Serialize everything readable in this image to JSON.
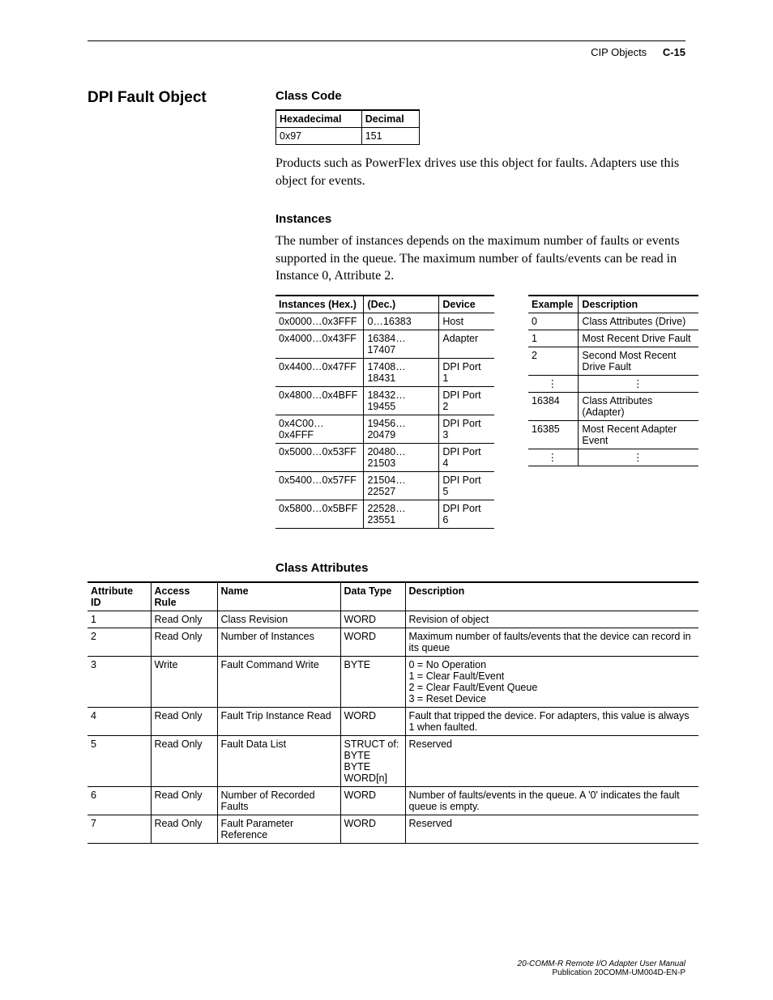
{
  "header": {
    "section": "CIP Objects",
    "page": "C-15"
  },
  "title": "DPI Fault Object",
  "classCode": {
    "heading": "Class Code",
    "cols": [
      "Hexadecimal",
      "Decimal"
    ],
    "row": [
      "0x97",
      "151"
    ]
  },
  "intro": "Products such as PowerFlex drives use this object for faults. Adapters use this object for events.",
  "instances": {
    "heading": "Instances",
    "text": "The number of instances depends on the maximum number of faults or events supported in the queue. The maximum number of faults/events can be read in Instance 0, Attribute 2.",
    "table": {
      "cols": [
        "Instances (Hex.)",
        "(Dec.)",
        "Device"
      ],
      "rows": [
        [
          "0x0000…0x3FFF",
          "0…16383",
          "Host"
        ],
        [
          "0x4000…0x43FF",
          "16384…17407",
          "Adapter"
        ],
        [
          "0x4400…0x47FF",
          "17408…18431",
          "DPI Port 1"
        ],
        [
          "0x4800…0x4BFF",
          "18432…19455",
          "DPI Port 2"
        ],
        [
          "0x4C00…0x4FFF",
          "19456…20479",
          "DPI Port 3"
        ],
        [
          "0x5000…0x53FF",
          "20480…21503",
          "DPI Port 4"
        ],
        [
          "0x5400…0x57FF",
          "21504…22527",
          "DPI Port 5"
        ],
        [
          "0x5800…0x5BFF",
          "22528…23551",
          "DPI Port 6"
        ]
      ]
    },
    "examples": {
      "cols": [
        "Example",
        "Description"
      ],
      "rows": [
        [
          "0",
          "Class Attributes (Drive)"
        ],
        [
          "1",
          "Most Recent Drive Fault"
        ],
        [
          "2",
          "Second Most Recent Drive Fault"
        ],
        [
          "⋮",
          "⋮"
        ],
        [
          "16384",
          "Class Attributes (Adapter)"
        ],
        [
          "16385",
          "Most Recent Adapter Event"
        ],
        [
          "⋮",
          "⋮"
        ]
      ]
    }
  },
  "classAttrs": {
    "heading": "Class Attributes",
    "cols": [
      "Attribute ID",
      "Access Rule",
      "Name",
      "Data Type",
      "Description"
    ],
    "colWidths": [
      "78px",
      "82px",
      "152px",
      "80px",
      "auto"
    ],
    "rows": [
      [
        "1",
        "Read Only",
        "Class Revision",
        "WORD",
        "Revision of object"
      ],
      [
        "2",
        "Read Only",
        "Number of Instances",
        "WORD",
        "Maximum number of faults/events that the device can record in its queue"
      ],
      [
        "3",
        "Write",
        "Fault Command Write",
        "BYTE",
        "0 = No Operation\n1 = Clear Fault/Event\n2 = Clear Fault/Event Queue\n3 = Reset Device"
      ],
      [
        "4",
        "Read Only",
        "Fault Trip Instance Read",
        "WORD",
        "Fault that tripped the device. For adapters, this value is always 1 when faulted."
      ],
      [
        "5",
        "Read Only",
        "Fault Data List",
        "STRUCT of:\nBYTE\nBYTE\nWORD[n]",
        "Reserved"
      ],
      [
        "6",
        "Read Only",
        "Number of Recorded Faults",
        "WORD",
        "Number of faults/events in the queue. A '0' indicates the fault queue is empty."
      ],
      [
        "7",
        "Read Only",
        "Fault Parameter Reference",
        "WORD",
        "Reserved"
      ]
    ]
  },
  "footer": {
    "l1": "20-COMM-R Remote I/O Adapter User Manual",
    "l2": "Publication 20COMM-UM004D-EN-P"
  }
}
